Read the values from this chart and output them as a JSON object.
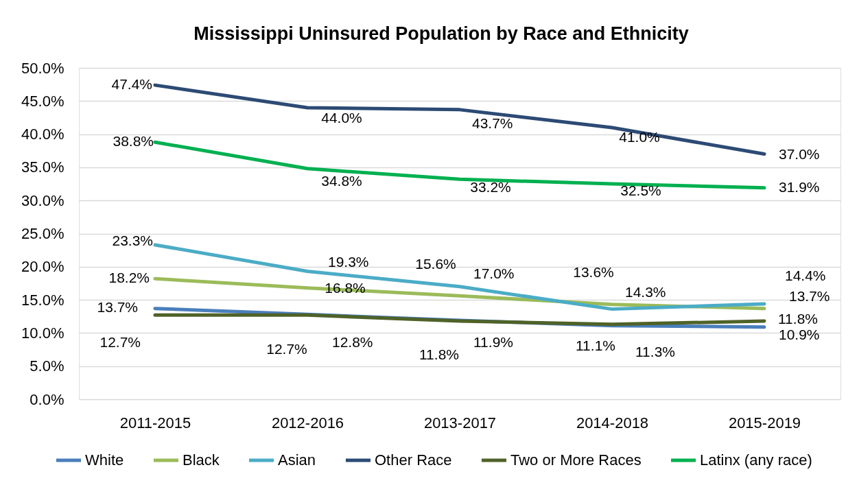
{
  "chart_data": {
    "type": "line",
    "title": "Mississippi Uninsured Population by Race and Ethnicity",
    "categories": [
      "2011-2015",
      "2012-2016",
      "2013-2017",
      "2014-2018",
      "2015-2019"
    ],
    "series": [
      {
        "name": "White",
        "color": "#4a7ebb",
        "values": [
          13.7,
          12.8,
          11.9,
          11.1,
          10.9
        ],
        "value_labels": [
          "13.7%",
          "12.8%",
          "11.9%",
          "11.1%",
          "10.9%"
        ]
      },
      {
        "name": "Black",
        "color": "#9bbb59",
        "values": [
          18.2,
          16.8,
          15.6,
          14.3,
          13.7
        ],
        "value_labels": [
          "18.2%",
          "16.8%",
          "15.6%",
          "14.3%",
          "13.7%"
        ]
      },
      {
        "name": "Asian",
        "color": "#4bacc6",
        "values": [
          23.3,
          19.3,
          17.0,
          13.6,
          14.4
        ],
        "value_labels": [
          "23.3%",
          "19.3%",
          "17.0%",
          "13.6%",
          "14.4%"
        ]
      },
      {
        "name": "Other Race",
        "color": "#2c4a74",
        "values": [
          47.4,
          44.0,
          43.7,
          41.0,
          37.0
        ],
        "value_labels": [
          "47.4%",
          "44.0%",
          "43.7%",
          "41.0%",
          "37.0%"
        ]
      },
      {
        "name": "Two or More Races",
        "color": "#4f6228",
        "values": [
          12.7,
          12.7,
          11.8,
          11.3,
          11.8
        ],
        "value_labels": [
          "12.7%",
          "12.7%",
          "11.8%",
          "11.3%",
          "11.8%"
        ]
      },
      {
        "name": "Latinx (any race)",
        "color": "#00b050",
        "values": [
          38.8,
          34.8,
          33.2,
          32.5,
          31.9
        ],
        "value_labels": [
          "38.8%",
          "34.8%",
          "33.2%",
          "32.5%",
          "31.9%"
        ]
      }
    ],
    "ylim": [
      0,
      50
    ],
    "yticks": [
      {
        "value": 0,
        "label": "0.0%"
      },
      {
        "value": 5,
        "label": "5.0%"
      },
      {
        "value": 10,
        "label": "10.0%"
      },
      {
        "value": 15,
        "label": "15.0%"
      },
      {
        "value": 20,
        "label": "20.0%"
      },
      {
        "value": 25,
        "label": "25.0%"
      },
      {
        "value": 30,
        "label": "30.0%"
      },
      {
        "value": 35,
        "label": "35.0%"
      },
      {
        "value": 40,
        "label": "40.0%"
      },
      {
        "value": 45,
        "label": "45.0%"
      },
      {
        "value": 50,
        "label": "50.0%"
      }
    ],
    "grid": "y",
    "legend": "bottom",
    "marker": "none",
    "line_style": "solid"
  }
}
